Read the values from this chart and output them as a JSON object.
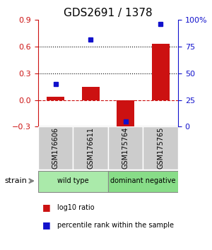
{
  "title": "GDS2691 / 1378",
  "samples": [
    "GSM176606",
    "GSM176611",
    "GSM175764",
    "GSM175765"
  ],
  "log10_ratio": [
    0.04,
    0.15,
    -0.35,
    0.63
  ],
  "percentile_rank": [
    40,
    82,
    5,
    96
  ],
  "groups": [
    {
      "label": "wild type",
      "samples": [
        0,
        1
      ],
      "color": "#aaeaaa"
    },
    {
      "label": "dominant negative",
      "samples": [
        2,
        3
      ],
      "color": "#88dd88"
    }
  ],
  "ylim_left": [
    -0.3,
    0.9
  ],
  "ylim_right": [
    0,
    100
  ],
  "yticks_left": [
    -0.3,
    0.0,
    0.3,
    0.6,
    0.9
  ],
  "yticks_right": [
    0,
    25,
    50,
    75,
    100
  ],
  "hlines_dotted": [
    0.3,
    0.6
  ],
  "hline_dashed": 0.0,
  "bar_color": "#cc1111",
  "dot_color": "#1111cc",
  "bar_width": 0.5,
  "strain_label": "strain",
  "legend_ratio_label": "log10 ratio",
  "legend_rank_label": "percentile rank within the sample",
  "background_color": "#ffffff",
  "sample_box_color": "#cccccc",
  "group_border_color": "#888888"
}
